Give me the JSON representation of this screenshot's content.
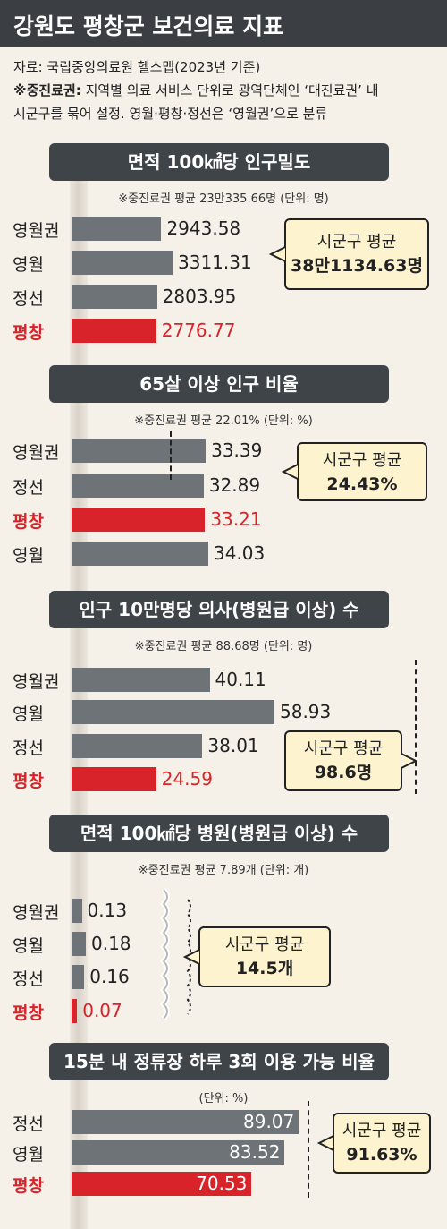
{
  "title": "강원도 평창군 보건의료 지표",
  "source": {
    "line1": "자료: 국립중앙의료원 헬스맵(2023년 기준)",
    "note_label": "※중진료권:",
    "note_text_1": " 지역별 의료 서비스 단위로 광역단체인 ‘대진료권’ 내",
    "note_text_2": "시군구를 묶어 설정. 영월·평창·정선은 ‘영월권’으로 분류"
  },
  "colors": {
    "bar": "#6e7377",
    "highlight": "#d8232a",
    "bubble": "#fdf3cf",
    "title_bg": "#3f4449"
  },
  "chart_data": [
    {
      "type": "bar",
      "title": "면적 100㎢당 인구밀도",
      "note": "※중진료권 평균 23만335.66명 (단위: 명)",
      "categories": [
        "영월권",
        "영월",
        "정선",
        "평창"
      ],
      "values": [
        2943.58,
        3311.31,
        2803.95,
        2776.77
      ],
      "labels": [
        "2943.58",
        "3311.31",
        "2803.95",
        "2776.77"
      ],
      "highlight": "평창",
      "callout": {
        "line1": "시군구 평균",
        "line2": "38만1134.63명"
      }
    },
    {
      "type": "bar",
      "title": "65살 이상 인구 비율",
      "note": "※중진료권 평균 22.01% (단위: %)",
      "categories": [
        "영월권",
        "정선",
        "평창",
        "영월"
      ],
      "values": [
        33.39,
        32.89,
        33.21,
        34.03
      ],
      "labels": [
        "33.39",
        "32.89",
        "33.21",
        "34.03"
      ],
      "highlight": "평창",
      "reference": 24.43,
      "callout": {
        "line1": "시군구 평균",
        "line2": "24.43%"
      }
    },
    {
      "type": "bar",
      "title": "인구 10만명당 의사(병원급 이상) 수",
      "note": "※중진료권 평균 88.68명 (단위: 명)",
      "categories": [
        "영월권",
        "영월",
        "정선",
        "평창"
      ],
      "values": [
        40.11,
        58.93,
        38.01,
        24.59
      ],
      "labels": [
        "40.11",
        "58.93",
        "38.01",
        "24.59"
      ],
      "highlight": "평창",
      "reference": 98.6,
      "callout": {
        "line1": "시군구 평균",
        "line2": "98.6명"
      }
    },
    {
      "type": "bar",
      "title": "면적 100㎢당 병원(병원급 이상) 수",
      "note": "※중진료권 평균 7.89개 (단위: 개)",
      "categories": [
        "영월권",
        "영월",
        "정선",
        "평창"
      ],
      "values": [
        0.13,
        0.18,
        0.16,
        0.07
      ],
      "labels": [
        "0.13",
        "0.18",
        "0.16",
        "0.07"
      ],
      "highlight": "평창",
      "reference": 14.5,
      "callout": {
        "line1": "시군구 평균",
        "line2": "14.5개"
      }
    },
    {
      "type": "bar",
      "title": "15분 내 정류장 하루 3회 이용 가능 비율",
      "note": "(단위: %)",
      "categories": [
        "정선",
        "영월",
        "평창"
      ],
      "values": [
        89.07,
        83.52,
        70.53
      ],
      "labels": [
        "89.07",
        "83.52",
        "70.53"
      ],
      "highlight": "평창",
      "reference": 91.63,
      "callout": {
        "line1": "시군구 평균",
        "line2": "91.63%"
      }
    }
  ]
}
